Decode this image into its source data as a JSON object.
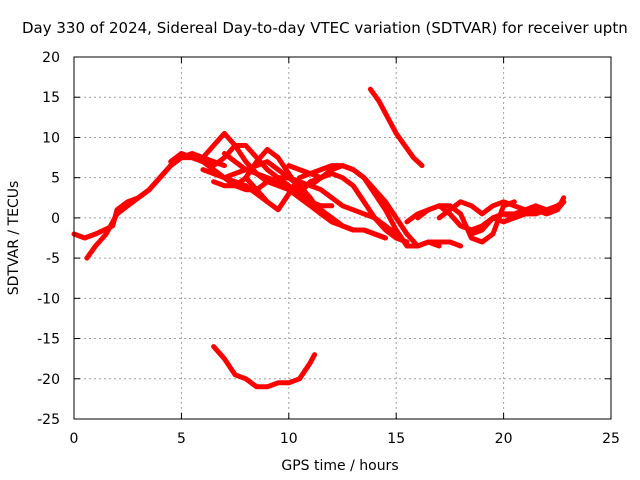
{
  "chart_data": {
    "type": "line",
    "title": "Day 330 of 2024, Sidereal Day-to-day VTEC variation (SDTVAR) for receiver uptn",
    "xlabel": "GPS time / hours",
    "ylabel": "SDTVAR / TECUs",
    "xlim": [
      0,
      25
    ],
    "ylim": [
      -25,
      20
    ],
    "x_ticks": [
      0,
      5,
      10,
      15,
      20,
      25
    ],
    "y_ticks": [
      -25,
      -20,
      -15,
      -10,
      -5,
      0,
      5,
      10,
      15,
      20
    ],
    "x_tick_labels": [
      "0",
      "5",
      "10",
      "15",
      "20",
      "25"
    ],
    "y_tick_labels": [
      "-25",
      "-20",
      "-15",
      "-10",
      "-5",
      "0",
      "5",
      "10",
      "15",
      "20"
    ],
    "grid": true,
    "legend": "none",
    "line_color": "#ff0000",
    "series": [
      {
        "name": "s1",
        "x": [
          0,
          0.5,
          1.0,
          1.4,
          1.8,
          2.0,
          2.5,
          3.0,
          3.5,
          4.0,
          4.5,
          5.0,
          5.5,
          6.0,
          6.5,
          7.0
        ],
        "y": [
          -2,
          -2.5,
          -2,
          -1.5,
          -1,
          1,
          2,
          2.5,
          3.5,
          5,
          6.5,
          7.5,
          8,
          7.5,
          7,
          6.5
        ]
      },
      {
        "name": "s2",
        "x": [
          0.6,
          1.0,
          1.5,
          2.0,
          2.5,
          3.0,
          3.5,
          4.0,
          4.5,
          5.0,
          5.5,
          6.0,
          6.5,
          7.0,
          7.5,
          8.0,
          8.5,
          9.0
        ],
        "y": [
          -5,
          -3.5,
          -2,
          0.5,
          1.5,
          2.5,
          3.5,
          5,
          6.5,
          7.5,
          7.5,
          7,
          6,
          5,
          4.5,
          4,
          3,
          2
        ]
      },
      {
        "name": "s3",
        "x": [
          4.5,
          5.0,
          5.5,
          6.0,
          6.5,
          7.0,
          7.5,
          8.0,
          8.5,
          9.0,
          9.5,
          10.0,
          10.5,
          11.0
        ],
        "y": [
          7,
          8,
          7.5,
          7.5,
          9,
          10.5,
          9,
          7,
          5.5,
          5,
          4.5,
          3.5,
          3,
          2
        ]
      },
      {
        "name": "s4",
        "x": [
          5.5,
          6.0,
          6.5,
          7.0,
          7.5,
          8.0,
          8.5,
          9.0,
          9.5,
          10.0,
          10.5,
          11.0,
          11.5,
          12.0,
          12.5
        ],
        "y": [
          7.5,
          7,
          6.5,
          7.5,
          9,
          9,
          7.5,
          6,
          5,
          4,
          3,
          2,
          1,
          0,
          -1
        ]
      },
      {
        "name": "s5",
        "x": [
          6.5,
          7.0,
          7.5,
          8.0,
          8.5,
          9.0,
          9.5,
          10.0,
          10.5,
          11.0,
          11.5,
          12.0
        ],
        "y": [
          4.5,
          4,
          4,
          5,
          7,
          8.5,
          7.5,
          5.5,
          3.5,
          2,
          1.5,
          1.5
        ]
      },
      {
        "name": "s6",
        "x": [
          6.0,
          6.5,
          7.0,
          7.5,
          8.0,
          8.5,
          9.0,
          9.5,
          10.0,
          10.5,
          11.0,
          11.5,
          12.0,
          12.5,
          13.0,
          13.5,
          14.0,
          14.5
        ],
        "y": [
          6,
          5.5,
          5,
          5.5,
          6,
          5.5,
          4.5,
          4,
          3.5,
          2.5,
          1.5,
          0.5,
          0,
          -1,
          -1.5,
          -1.5,
          -2,
          -2.5
        ]
      },
      {
        "name": "s7",
        "x": [
          6.5,
          7.0,
          7.5,
          8.0,
          8.5,
          9.0,
          9.5,
          10.0,
          10.5,
          11.0,
          11.5,
          12.0,
          12.5,
          13.0,
          13.5,
          14.0,
          14.5,
          15.0
        ],
        "y": [
          5.5,
          5,
          4,
          3.5,
          3.5,
          4.5,
          5,
          5,
          4.5,
          4,
          3.5,
          2.5,
          1.5,
          1,
          0.5,
          0,
          -1,
          -2
        ]
      },
      {
        "name": "s8",
        "x": [
          7.0,
          7.5,
          8.0,
          8.5,
          9.0,
          9.5,
          10.0,
          10.5,
          11.0,
          11.5,
          12.0,
          12.5,
          13.0,
          13.5,
          14.0,
          14.5
        ],
        "y": [
          8,
          7,
          6,
          6.5,
          7,
          6,
          5,
          4,
          2.5,
          0.5,
          -0.5,
          -1,
          -1.5,
          -1.5,
          -2,
          -2.5
        ]
      },
      {
        "name": "s9",
        "x": [
          8.0,
          8.5,
          9.0,
          9.5,
          10.0,
          10.5,
          11.0,
          11.5
        ],
        "y": [
          5,
          3.5,
          2,
          1,
          3,
          5,
          5.5,
          5
        ]
      },
      {
        "name": "s10",
        "x": [
          10.0,
          10.5,
          11.0,
          11.5,
          12.0,
          12.5,
          13.0,
          13.5,
          14.0,
          14.5,
          15.0,
          15.5,
          16.0,
          16.5,
          17.0,
          17.5,
          18.0
        ],
        "y": [
          6.5,
          6,
          5.5,
          6,
          6.5,
          6.5,
          6,
          5,
          3,
          1,
          -1.5,
          -3.5,
          -3.5,
          -3,
          -3,
          -3,
          -3.5
        ]
      },
      {
        "name": "s11",
        "x": [
          10.5,
          11.0,
          11.5,
          12.0,
          12.5,
          13.0,
          13.5,
          14.0,
          14.5,
          15.0,
          15.5
        ],
        "y": [
          3,
          4.5,
          5,
          5.5,
          5,
          4,
          2,
          0,
          -1.5,
          -2.5,
          -3
        ]
      },
      {
        "name": "s12",
        "x": [
          11.0,
          11.5,
          12.0,
          12.5,
          13.0,
          13.5,
          14.0,
          14.5,
          15.0,
          15.5,
          16.0,
          16.5,
          17.0
        ],
        "y": [
          4,
          5,
          6,
          6.5,
          6,
          5,
          3.5,
          2,
          0,
          -2,
          -3.5,
          -3,
          -3.5
        ]
      },
      {
        "name": "s13",
        "x": [
          13.8,
          14.2,
          14.6,
          15.0,
          15.4,
          15.8,
          16.2
        ],
        "y": [
          16,
          14.5,
          12.5,
          10.5,
          9,
          7.5,
          6.5
        ]
      },
      {
        "name": "s14",
        "x": [
          15.5,
          16.0,
          16.5,
          17.0,
          17.5,
          18.0,
          18.5,
          19.0,
          19.5,
          20.0,
          20.5,
          21.0,
          21.5,
          22.0,
          22.5,
          22.8
        ],
        "y": [
          -0.5,
          0.5,
          1,
          1.5,
          0.5,
          -1,
          -1.5,
          -1,
          0,
          0.5,
          0.5,
          1,
          1.5,
          1,
          1.5,
          2
        ]
      },
      {
        "name": "s15",
        "x": [
          16.0,
          16.5,
          17.0,
          17.5,
          18.0,
          18.5,
          19.0,
          19.5,
          20.0,
          20.5
        ],
        "y": [
          0,
          1,
          1.5,
          1.5,
          0.5,
          -2.5,
          -3,
          -2,
          1.5,
          2
        ]
      },
      {
        "name": "s16",
        "x": [
          17.0,
          17.5,
          18.0,
          18.5,
          19.0,
          19.5,
          20.0,
          20.5,
          21.0
        ],
        "y": [
          0,
          1,
          2,
          1.5,
          0.5,
          1.5,
          2,
          1.5,
          1
        ]
      },
      {
        "name": "s17",
        "x": [
          18.5,
          19.0,
          19.5,
          20.0,
          20.5,
          21.0,
          21.5,
          22.0,
          22.5,
          22.8
        ],
        "y": [
          -2,
          -1.5,
          0,
          0.5,
          0,
          0.5,
          1,
          0.5,
          1,
          2
        ]
      },
      {
        "name": "s18",
        "x": [
          19.5,
          20.0,
          20.5,
          21.0,
          21.5,
          22.0,
          22.5,
          22.8
        ],
        "y": [
          0,
          -0.5,
          0,
          0.5,
          0.5,
          1,
          1,
          2.5
        ]
      },
      {
        "name": "s19",
        "x": [
          6.5,
          7.0,
          7.5,
          8.0,
          8.5,
          9.0,
          9.5,
          10.0,
          10.5,
          11.0,
          11.2
        ],
        "y": [
          -16,
          -17.5,
          -19.5,
          -20,
          -21,
          -21,
          -20.5,
          -20.5,
          -20,
          -18,
          -17
        ]
      }
    ]
  }
}
